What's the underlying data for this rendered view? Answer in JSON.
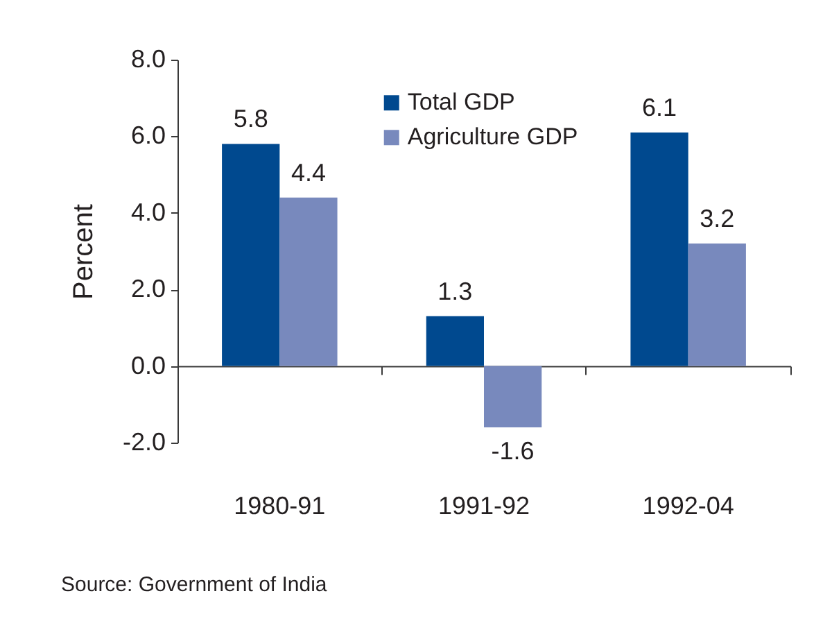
{
  "chart_data": {
    "type": "bar",
    "categories": [
      "1980-91",
      "1991-92",
      "1992-04"
    ],
    "series": [
      {
        "name": "Total GDP",
        "color": "#00498f",
        "values": [
          5.8,
          1.3,
          6.1
        ]
      },
      {
        "name": "Agriculture GDP",
        "color": "#7889bd",
        "values": [
          4.4,
          -1.6,
          3.2
        ]
      }
    ],
    "ylabel": "Percent",
    "ylim": [
      -2,
      8
    ],
    "yticks": [
      {
        "value": -2,
        "label": "-2.0"
      },
      {
        "value": 0,
        "label": "0.0"
      },
      {
        "value": 2,
        "label": "2.0"
      },
      {
        "value": 4,
        "label": "4.0"
      },
      {
        "value": 6,
        "label": "6.0"
      },
      {
        "value": 8,
        "label": "8.0"
      }
    ],
    "data_labels": true,
    "legend": "top",
    "annotations": [
      "Source: Government of India"
    ]
  }
}
